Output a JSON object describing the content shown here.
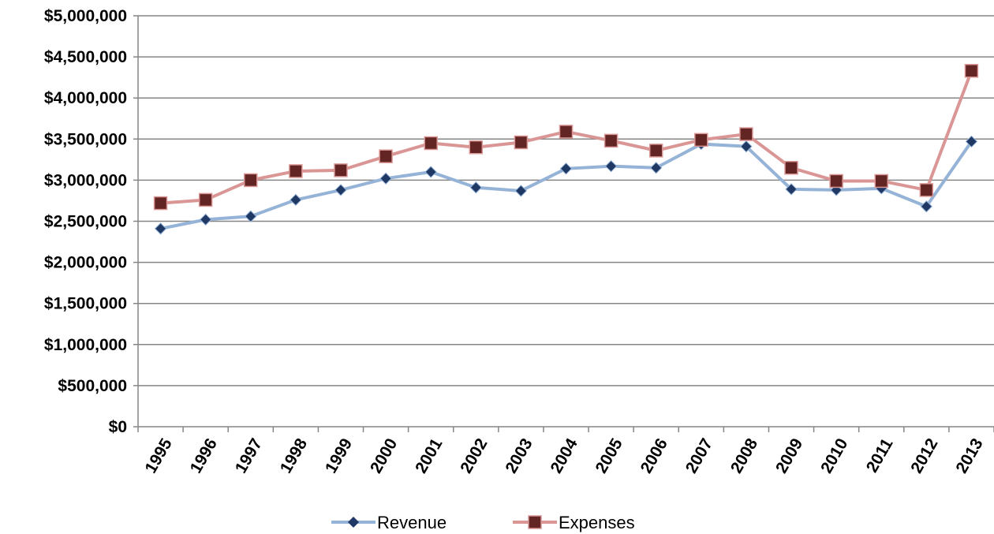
{
  "chart_data": {
    "type": "line",
    "title": "",
    "xlabel": "",
    "ylabel": "",
    "x": [
      "1995",
      "1996",
      "1997",
      "1998",
      "1999",
      "2000",
      "2001",
      "2002",
      "2003",
      "2004",
      "2005",
      "2006",
      "2007",
      "2008",
      "2009",
      "2010",
      "2011",
      "2012",
      "2013"
    ],
    "y_ticks": [
      "$0",
      "$500,000",
      "$1,000,000",
      "$1,500,000",
      "$2,000,000",
      "$2,500,000",
      "$3,000,000",
      "$3,500,000",
      "$4,000,000",
      "$4,500,000",
      "$5,000,000"
    ],
    "ylim": [
      0,
      5000000
    ],
    "grid": "horizontal",
    "legend_position": "bottom",
    "series": [
      {
        "name": "Revenue",
        "color": "#95b3d7",
        "marker": "diamond",
        "marker_color": "#1f3864",
        "values": [
          2410000,
          2520000,
          2560000,
          2760000,
          2880000,
          3020000,
          3100000,
          2910000,
          2870000,
          3140000,
          3170000,
          3150000,
          3440000,
          3410000,
          2890000,
          2880000,
          2900000,
          2680000,
          3470000
        ]
      },
      {
        "name": "Expenses",
        "color": "#d99694",
        "marker": "square",
        "marker_color": "#632523",
        "values": [
          2720000,
          2760000,
          3000000,
          3110000,
          3120000,
          3290000,
          3450000,
          3400000,
          3460000,
          3590000,
          3480000,
          3360000,
          3490000,
          3560000,
          3150000,
          2990000,
          2990000,
          2880000,
          4330000
        ]
      }
    ]
  }
}
